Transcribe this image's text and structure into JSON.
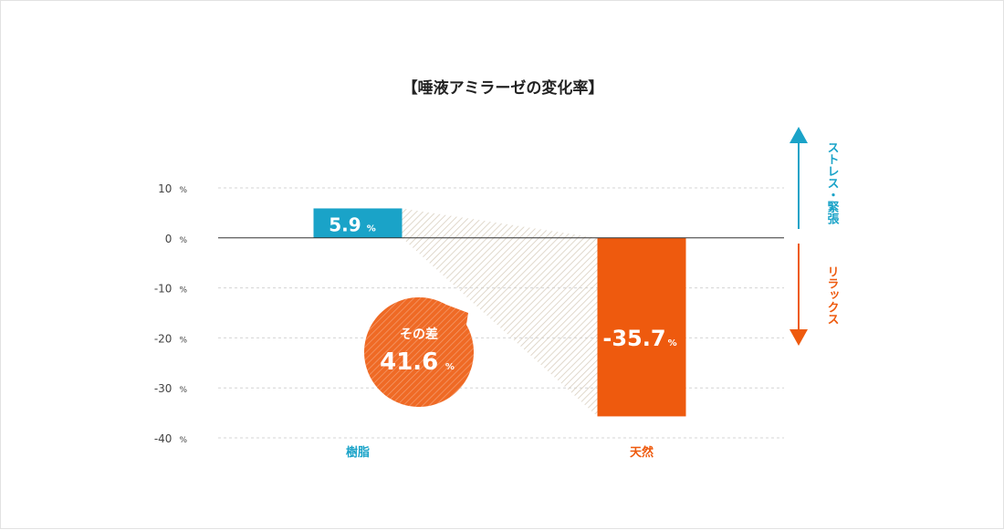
{
  "chart_data": {
    "type": "bar",
    "title": "【唾液アミラーゼの変化率】",
    "categories": [
      "樹脂",
      "天然"
    ],
    "values": [
      5.9,
      -35.7
    ],
    "value_labels": [
      "5.9",
      "-35.7"
    ],
    "unit": "%",
    "ylim": [
      -40,
      10
    ],
    "yticks": [
      10,
      0,
      -10,
      -20,
      -30,
      -40
    ],
    "grid": true,
    "colors": {
      "樹脂": "#1aa3c8",
      "天然": "#ee5a0e",
      "difference": "#ef6a25",
      "hatch": "#d9cfbf"
    },
    "annotation": {
      "label": "その差",
      "value": "41.6",
      "unit": "%"
    },
    "side_indicators": [
      {
        "text": "ストレス・緊張",
        "direction": "up",
        "color": "#1aa3c8"
      },
      {
        "text": "リラックス",
        "direction": "down",
        "color": "#ee5a0e"
      }
    ]
  }
}
